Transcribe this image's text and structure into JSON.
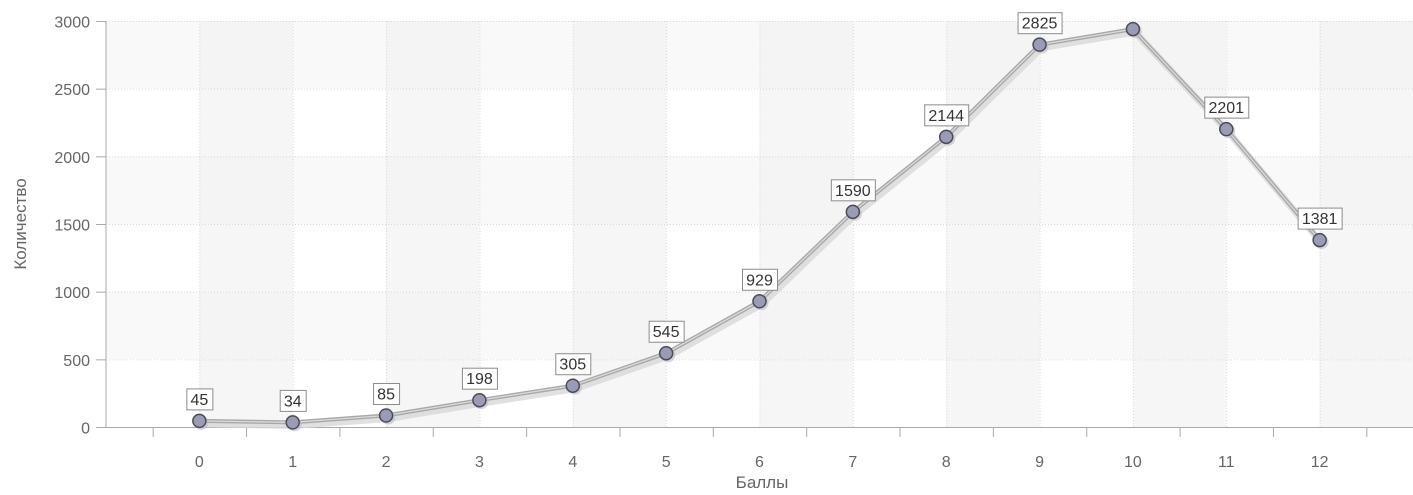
{
  "chart_data": {
    "type": "line",
    "xlabel": "Баллы",
    "ylabel": "Количество",
    "categories": [
      "0",
      "1",
      "2",
      "3",
      "4",
      "5",
      "6",
      "7",
      "8",
      "9",
      "10",
      "11",
      "12"
    ],
    "x": [
      0,
      1,
      2,
      3,
      4,
      5,
      6,
      7,
      8,
      9,
      10,
      11,
      12
    ],
    "series": [
      {
        "values": [
          45,
          34,
          85,
          198,
          305,
          545,
          929,
          1590,
          2144,
          2825,
          2940,
          2201,
          1381
        ]
      }
    ],
    "data_labels": [
      "45",
      "34",
      "85",
      "198",
      "305",
      "545",
      "929",
      "1590",
      "2144",
      "2825",
      "",
      "2201",
      "1381"
    ],
    "yticks": [
      0,
      500,
      1000,
      1500,
      2000,
      2500,
      3000
    ],
    "ylim": [
      0,
      3000
    ],
    "xlim": [
      -1,
      13
    ],
    "grid": true,
    "legend": "none",
    "colors": {
      "line": "#a8a8a8",
      "marker_fill": "#9a9cb3",
      "marker_stroke": "#4a4a5e",
      "band_alt": "#f6f6f6",
      "grid": "#d9d9d9",
      "axis": "#aaaaaa"
    }
  }
}
